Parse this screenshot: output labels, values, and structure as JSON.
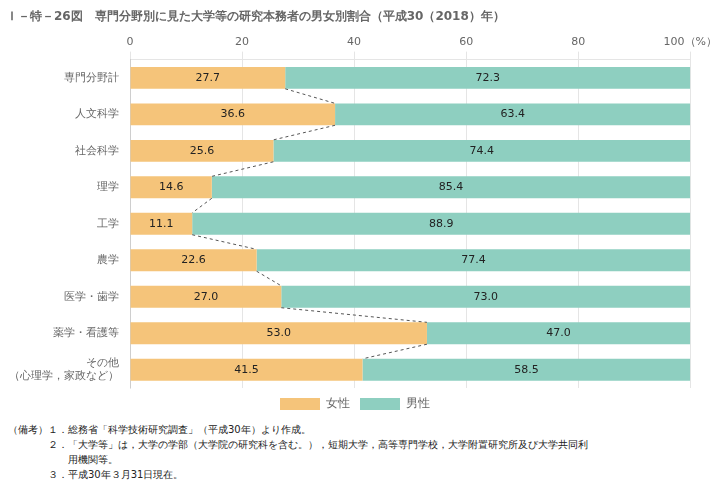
{
  "chart_data": {
    "type": "bar",
    "orientation": "horizontal",
    "stacked": true,
    "title": "Ｉ－特－26図　専門分野別に見た大学等の研究本務者の男女別割合（平成30（2018）年）",
    "categories": [
      "専門分野計",
      "人文科学",
      "社会科学",
      "理学",
      "工学",
      "農学",
      "医学・歯学",
      "薬学・看護等",
      "その他\n（心理学，家政など）"
    ],
    "series": [
      {
        "name": "女性",
        "color": "#F5C47A",
        "values": [
          27.7,
          36.6,
          25.6,
          14.6,
          11.1,
          22.6,
          27.0,
          53.0,
          41.5
        ],
        "value_labels": [
          "27.7",
          "36.6",
          "25.6",
          "14.6",
          "11.1",
          "22.6",
          "27.0",
          "53.0",
          "41.5"
        ]
      },
      {
        "name": "男性",
        "color": "#8ECFC0",
        "values": [
          72.3,
          63.4,
          74.4,
          85.4,
          88.9,
          77.4,
          73.0,
          47.0,
          58.5
        ],
        "value_labels": [
          "72.3",
          "63.4",
          "74.4",
          "85.4",
          "88.9",
          "77.4",
          "73.0",
          "47.0",
          "58.5"
        ]
      }
    ],
    "xlim": [
      0,
      100
    ],
    "xticks": [
      0,
      20,
      40,
      60,
      80,
      {
        "value": 100,
        "label": "100（%）"
      }
    ],
    "grid": true,
    "legend": "bottom",
    "data_labels": true,
    "annotations": [
      "（備考）１．総務省「科学技術研究調査」（平成30年）より作成。",
      "　　　　２．「大学等」は，大学の学部（大学院の研究科を含む。），短期大学，高等専門学校，大学附置研究所及び大学共同利",
      "　　　　　　用機関等。",
      "　　　　３．平成30年３月31日現在。"
    ]
  }
}
